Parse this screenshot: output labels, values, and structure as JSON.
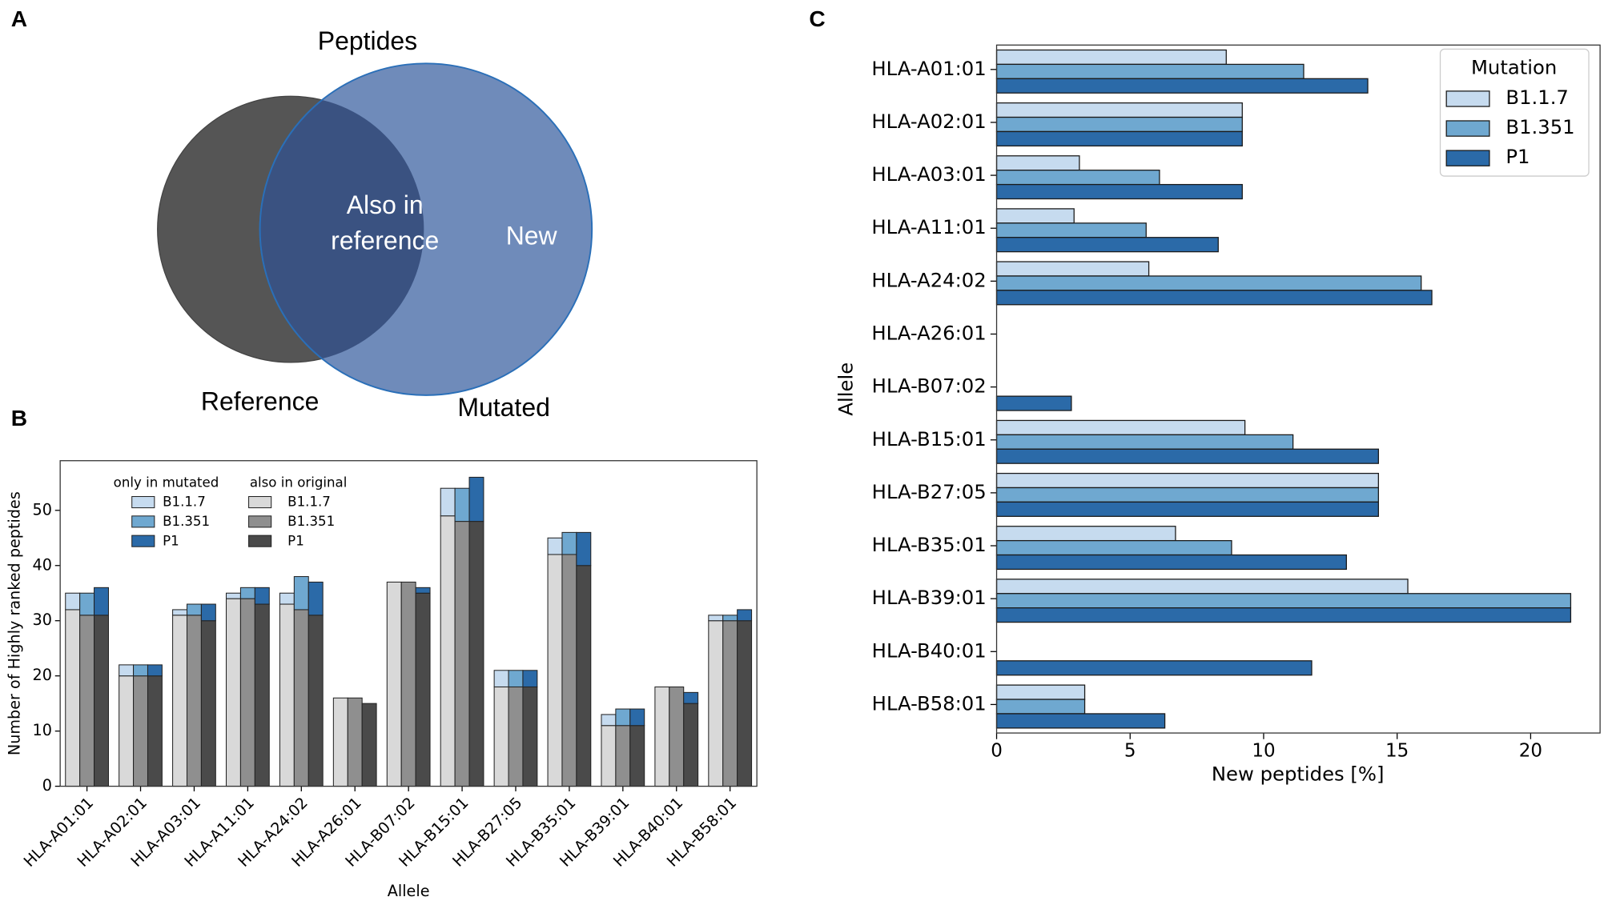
{
  "chart_data": [
    {
      "type": "venn",
      "panel": "A",
      "title": "Peptides",
      "labels": {
        "intersection": [
          "Also in",
          "reference"
        ],
        "right_only": "New",
        "left_set": "Reference",
        "right_set": "Mutated"
      }
    },
    {
      "type": "stacked_bar",
      "panel": "B",
      "xlabel": "Allele",
      "ylabel": "Number of Highly ranked peptides",
      "categories": [
        "HLA-A01:01",
        "HLA-A02:01",
        "HLA-A03:01",
        "HLA-A11:01",
        "HLA-A24:02",
        "HLA-A26:01",
        "HLA-B07:02",
        "HLA-B15:01",
        "HLA-B27:05",
        "HLA-B35:01",
        "HLA-B39:01",
        "HLA-B40:01",
        "HLA-B58:01"
      ],
      "ylim": [
        0,
        59
      ],
      "yticks": [
        0,
        10,
        20,
        30,
        40,
        50
      ],
      "legend_groups": [
        {
          "title": "only in mutated",
          "series": [
            {
              "name": "B1.1.7",
              "color": "#c6dbef",
              "values": [
                3,
                2,
                1,
                1,
                2,
                0,
                0,
                5,
                3,
                3,
                2,
                0,
                1
              ]
            },
            {
              "name": "B1.351",
              "color": "#6fa8d0",
              "values": [
                4,
                2,
                2,
                2,
                6,
                0,
                0,
                6,
                3,
                4,
                3,
                0,
                1
              ]
            },
            {
              "name": "P1",
              "color": "#2b6aa8",
              "values": [
                5,
                2,
                3,
                3,
                6,
                0,
                1,
                8,
                3,
                6,
                3,
                2,
                2
              ]
            }
          ]
        },
        {
          "title": "also in original",
          "series": [
            {
              "name": "B1.1.7",
              "color": "#d9d9d9",
              "values": [
                32,
                20,
                31,
                34,
                33,
                16,
                37,
                49,
                18,
                42,
                11,
                18,
                30
              ]
            },
            {
              "name": "B1.351",
              "color": "#8f8f8f",
              "values": [
                31,
                20,
                31,
                34,
                32,
                16,
                37,
                48,
                18,
                42,
                11,
                18,
                30
              ]
            },
            {
              "name": "P1",
              "color": "#4a4a4a",
              "values": [
                31,
                20,
                30,
                33,
                31,
                15,
                35,
                48,
                18,
                40,
                11,
                15,
                30
              ]
            }
          ]
        }
      ]
    },
    {
      "type": "hbar",
      "panel": "C",
      "xlabel": "New peptides [%]",
      "ylabel": "Allele",
      "legend_title": "Mutation",
      "categories": [
        "HLA-A01:01",
        "HLA-A02:01",
        "HLA-A03:01",
        "HLA-A11:01",
        "HLA-A24:02",
        "HLA-A26:01",
        "HLA-B07:02",
        "HLA-B15:01",
        "HLA-B27:05",
        "HLA-B35:01",
        "HLA-B39:01",
        "HLA-B40:01",
        "HLA-B58:01"
      ],
      "xlim": [
        0,
        22.6
      ],
      "xticks": [
        0,
        5,
        10,
        15,
        20
      ],
      "series": [
        {
          "name": "B1.1.7",
          "color": "#c6dbef",
          "values": [
            8.6,
            9.2,
            3.1,
            2.9,
            5.7,
            0,
            0,
            9.3,
            14.3,
            6.7,
            15.4,
            0,
            3.3
          ]
        },
        {
          "name": "B1.351",
          "color": "#6fa8d0",
          "values": [
            11.5,
            9.2,
            6.1,
            5.6,
            15.9,
            0,
            0,
            11.1,
            14.3,
            8.8,
            21.5,
            0,
            3.3
          ]
        },
        {
          "name": "P1",
          "color": "#2b6aa8",
          "values": [
            13.9,
            9.2,
            9.2,
            8.3,
            16.3,
            0,
            2.8,
            14.3,
            14.3,
            13.1,
            21.5,
            11.8,
            6.3
          ]
        }
      ]
    }
  ]
}
